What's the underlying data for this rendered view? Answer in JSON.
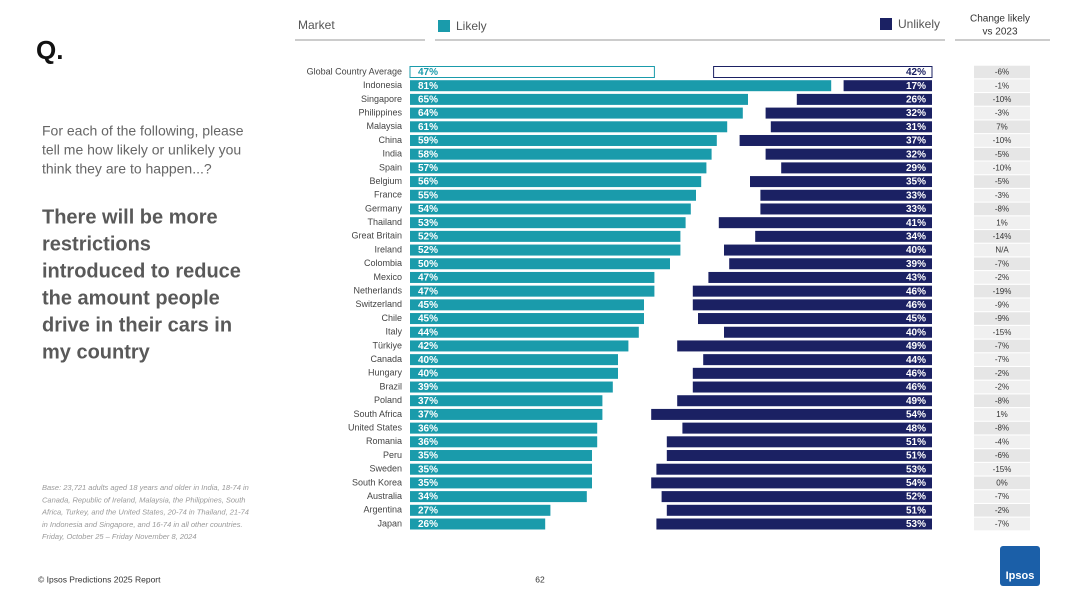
{
  "slide": {
    "mark": "Q.",
    "question": [
      "For each of the following, please",
      "tell me how likely or unlikely you",
      "think they are to happen...?"
    ],
    "statement": [
      "There will be more",
      "restrictions",
      "introduced to reduce",
      "the amount people",
      "drive in their cars in",
      "my country"
    ],
    "base_note": [
      "Base: 23,721 adults aged 18 years and older in India, 18-74 in",
      "Canada, Republic of Ireland, Malaysia, the Philippines, South",
      "Africa, Turkey, and the United States, 20-74 in Thailand, 21-74",
      "in Indonesia and Singapore, and 16-74 in all other countries.",
      "Friday, October 25 – Friday November 8, 2024"
    ],
    "footer": "© Ipsos Predictions 2025 Report",
    "page_number": "62",
    "brand": "Ipsos"
  },
  "chart_data": {
    "type": "bar",
    "category_header": "Market",
    "categories": [
      "Global Country Average",
      "Indonesia",
      "Singapore",
      "Philippines",
      "Malaysia",
      "China",
      "India",
      "Spain",
      "Belgium",
      "France",
      "Germany",
      "Thailand",
      "Great Britain",
      "Ireland",
      "Colombia",
      "Mexico",
      "Netherlands",
      "Switzerland",
      "Chile",
      "Italy",
      "Türkiye",
      "Canada",
      "Hungary",
      "Brazil",
      "Poland",
      "South Africa",
      "United States",
      "Romania",
      "Peru",
      "Sweden",
      "South Korea",
      "Australia",
      "Argentina",
      "Japan"
    ],
    "series": [
      {
        "name": "Likely",
        "color": "#1a9bab",
        "values": [
          47,
          81,
          65,
          64,
          61,
          59,
          58,
          57,
          56,
          55,
          54,
          53,
          52,
          52,
          50,
          47,
          47,
          45,
          45,
          44,
          42,
          40,
          40,
          39,
          37,
          37,
          36,
          36,
          35,
          35,
          35,
          34,
          27,
          26
        ],
        "value_labels": [
          "47%",
          "81%",
          "65%",
          "64%",
          "61%",
          "59%",
          "58%",
          "57%",
          "56%",
          "55%",
          "54%",
          "53%",
          "52%",
          "52%",
          "50%",
          "47%",
          "47%",
          "45%",
          "45%",
          "44%",
          "42%",
          "40%",
          "40%",
          "39%",
          "37%",
          "37%",
          "36%",
          "36%",
          "35%",
          "35%",
          "35%",
          "34%",
          "27%",
          "26%"
        ]
      },
      {
        "name": "Unlikely",
        "color": "#1b2163",
        "values": [
          42,
          17,
          26,
          32,
          31,
          37,
          32,
          29,
          35,
          33,
          33,
          41,
          34,
          40,
          39,
          43,
          46,
          46,
          45,
          40,
          49,
          44,
          46,
          46,
          49,
          54,
          48,
          51,
          51,
          53,
          54,
          52,
          51,
          53
        ],
        "value_labels": [
          "42%",
          "17%",
          "26%",
          "32%",
          "31%",
          "37%",
          "32%",
          "29%",
          "35%",
          "33%",
          "33%",
          "41%",
          "34%",
          "40%",
          "39%",
          "43%",
          "46%",
          "46%",
          "45%",
          "40%",
          "49%",
          "44%",
          "46%",
          "46%",
          "49%",
          "54%",
          "48%",
          "51%",
          "51%",
          "53%",
          "54%",
          "52%",
          "51%",
          "53%"
        ]
      }
    ],
    "change": {
      "header": [
        "Change likely",
        "vs 2023"
      ],
      "values": [
        -6,
        -1,
        -10,
        -3,
        7,
        -10,
        -5,
        -10,
        -5,
        -3,
        -8,
        1,
        -14,
        null,
        -7,
        -2,
        -19,
        -9,
        -9,
        -15,
        -7,
        -7,
        -2,
        -2,
        -8,
        1,
        -8,
        -4,
        -6,
        -15,
        0,
        -7,
        -2,
        -7
      ],
      "value_labels": [
        "-6%",
        "-1%",
        "-10%",
        "-3%",
        "7%",
        "-10%",
        "-5%",
        "-10%",
        "-5%",
        "-3%",
        "-8%",
        "1%",
        "-14%",
        "N/A",
        "-7%",
        "-2%",
        "-19%",
        "-9%",
        "-9%",
        "-15%",
        "-7%",
        "-7%",
        "-2%",
        "-2%",
        "-8%",
        "1%",
        "-8%",
        "-4%",
        "-6%",
        "-15%",
        "0%",
        "-7%",
        "-2%",
        "-7%"
      ]
    }
  }
}
